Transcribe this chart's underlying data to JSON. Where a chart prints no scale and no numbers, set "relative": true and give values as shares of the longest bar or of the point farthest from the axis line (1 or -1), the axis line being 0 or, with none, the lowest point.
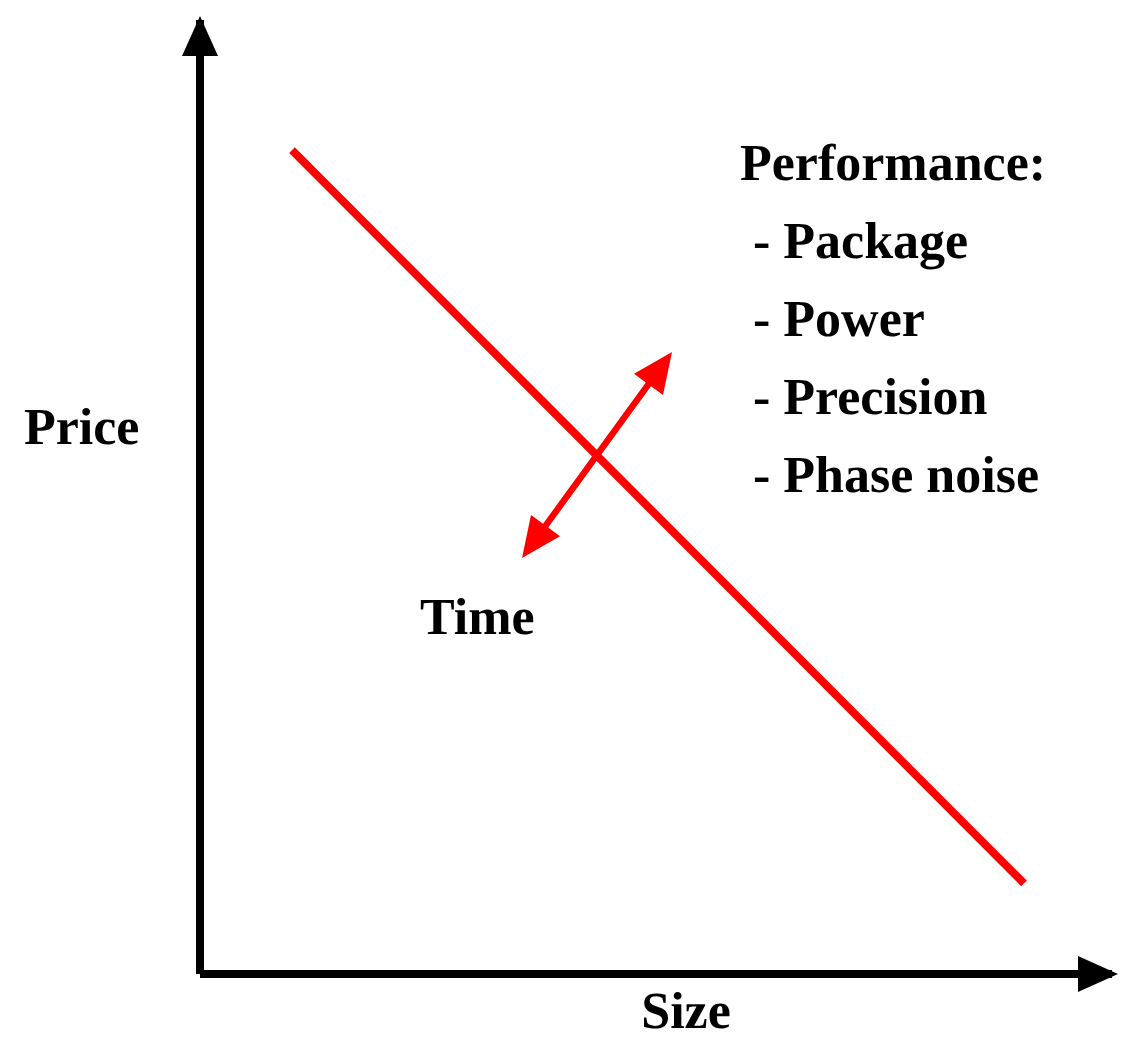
{
  "chart_data": {
    "type": "line",
    "relative": true,
    "xlabel": "Size",
    "ylabel": "Price",
    "categories": [
      null,
      null
    ],
    "series": [
      {
        "color": "#ff0000",
        "values": [
          1,
          0.11
        ]
      }
    ],
    "marker": "none",
    "line_style": "solid",
    "annotations": [
      "Performance:\n - Package\n - Power\n - Precision\n - Phase noise",
      "Time"
    ]
  }
}
